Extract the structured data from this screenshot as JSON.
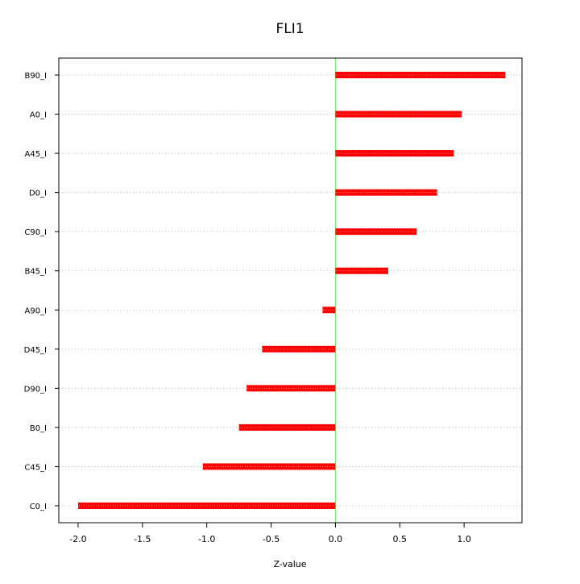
{
  "chart_data": {
    "type": "bar",
    "orientation": "horizontal",
    "title": "FLI1",
    "xlabel": "Z-value",
    "ylabel": "",
    "categories": [
      "B90_I",
      "A0_I",
      "A45_I",
      "D0_I",
      "C90_I",
      "B45_I",
      "A90_I",
      "D45_I",
      "D90_I",
      "B0_I",
      "C45_I",
      "C0_I"
    ],
    "values": [
      1.32,
      0.98,
      0.92,
      0.79,
      0.63,
      0.41,
      -0.1,
      -0.57,
      -0.69,
      -0.75,
      -1.03,
      -2.0
    ],
    "xlim": [
      -2.15,
      1.45
    ],
    "xticks": [
      -2.0,
      -1.5,
      -1.0,
      -0.5,
      0.0,
      0.5,
      1.0
    ],
    "xtick_labels": [
      "-2.0",
      "-1.5",
      "-1.0",
      "-0.5",
      "0.0",
      "0.5",
      "1.0"
    ],
    "grid": "horizontal dotted",
    "legend": "none",
    "zero_line": 0.0,
    "colors": {
      "bar": "#ff0000",
      "bar_center": "#ff9999",
      "zero_line": "#66ee66",
      "grid": "#bbbbbb",
      "axis": "#000000"
    }
  }
}
